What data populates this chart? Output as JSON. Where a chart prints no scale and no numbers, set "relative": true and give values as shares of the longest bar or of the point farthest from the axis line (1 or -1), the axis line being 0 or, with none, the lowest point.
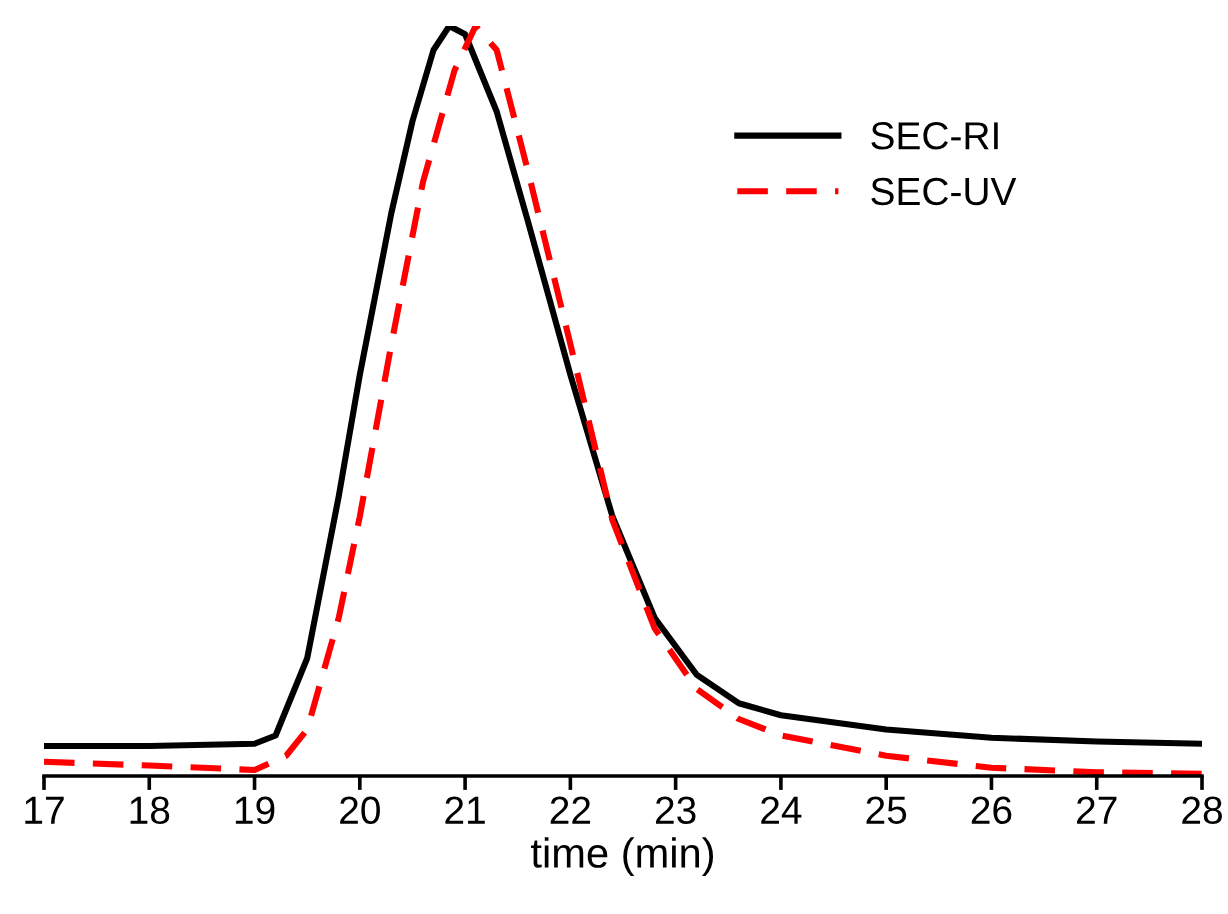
{
  "chart_data": {
    "type": "line",
    "xlabel": "time (min)",
    "relative": true,
    "xlim": [
      17,
      28
    ],
    "xticks": [
      17,
      18,
      19,
      20,
      21,
      22,
      23,
      24,
      25,
      26,
      27,
      28
    ],
    "legend": "top right",
    "grid": false,
    "series": [
      {
        "name": "SEC-RI",
        "color": "#000000",
        "line_style": "solid",
        "x": [
          17,
          18,
          19,
          19.2,
          19.5,
          19.8,
          20,
          20.3,
          20.5,
          20.7,
          20.85,
          21.0,
          21.3,
          21.6,
          22,
          22.4,
          22.8,
          23.2,
          23.6,
          24,
          25,
          26,
          27,
          28
        ],
        "values": [
          0.04,
          0.04,
          0.043,
          0.054,
          0.157,
          0.373,
          0.535,
          0.751,
          0.873,
          0.968,
          1.0,
          0.989,
          0.886,
          0.738,
          0.535,
          0.346,
          0.211,
          0.135,
          0.097,
          0.081,
          0.062,
          0.051,
          0.046,
          0.043
        ]
      },
      {
        "name": "SEC-UV",
        "color": "#ff0000",
        "line_style": "dashed",
        "x": [
          17,
          18,
          19,
          19.3,
          19.5,
          19.8,
          20,
          20.3,
          20.6,
          20.9,
          21.1,
          21.3,
          21.6,
          22,
          22.4,
          22.8,
          23.2,
          23.6,
          24,
          25,
          26,
          27,
          28
        ],
        "values": [
          0.019,
          0.014,
          0.008,
          0.027,
          0.062,
          0.211,
          0.346,
          0.576,
          0.792,
          0.941,
          1.0,
          0.968,
          0.805,
          0.576,
          0.341,
          0.197,
          0.116,
          0.076,
          0.054,
          0.027,
          0.011,
          0.005,
          0.003
        ]
      }
    ]
  }
}
